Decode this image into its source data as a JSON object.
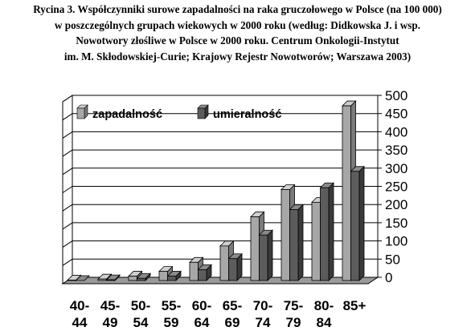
{
  "caption": {
    "line1": "Rycina 3. Współczynniki surowe zapadalności na raka gruczołowego w Polsce (na 100 000)",
    "line2": "w poszczególnych grupach wiekowych w 2000 roku (według: Didkowska J. i wsp.",
    "line3": "Nowotwory złośliwe w Polsce w 2000 roku. Centrum Onkologii-Instytut",
    "line4": "im. M. Skłodowskiej-Curie; Krajowy Rejestr Nowotworów; Warszawa 2003)"
  },
  "colors": {
    "series1_face": "#a7a7a7",
    "series1_top": "#cfcfcf",
    "series1_side": "#7a7a7a",
    "series2_face": "#5c5c5c",
    "series2_top": "#8a8a8a",
    "series2_side": "#3a3a3a"
  },
  "chart_data": {
    "type": "bar",
    "variant": "3d-clustered",
    "categories": [
      [
        "40-",
        "44"
      ],
      [
        "45-",
        "49"
      ],
      [
        "50-",
        "54"
      ],
      [
        "55-",
        "59"
      ],
      [
        "60-",
        "64"
      ],
      [
        "65-",
        "69"
      ],
      [
        "70-",
        "74"
      ],
      [
        "75-",
        "79"
      ],
      [
        "80-",
        "84"
      ],
      [
        "85+",
        ""
      ]
    ],
    "series": [
      {
        "name": "zapadalność",
        "values": [
          1,
          4,
          12,
          25,
          50,
          95,
          175,
          250,
          215,
          480
        ]
      },
      {
        "name": "umieralność",
        "values": [
          0,
          2,
          6,
          12,
          30,
          60,
          125,
          195,
          255,
          300
        ]
      }
    ],
    "ylim": [
      0,
      500
    ],
    "yticks": [
      0,
      50,
      100,
      150,
      200,
      250,
      300,
      350,
      400,
      450,
      500
    ],
    "grid": true,
    "legend_position": "top-left"
  }
}
